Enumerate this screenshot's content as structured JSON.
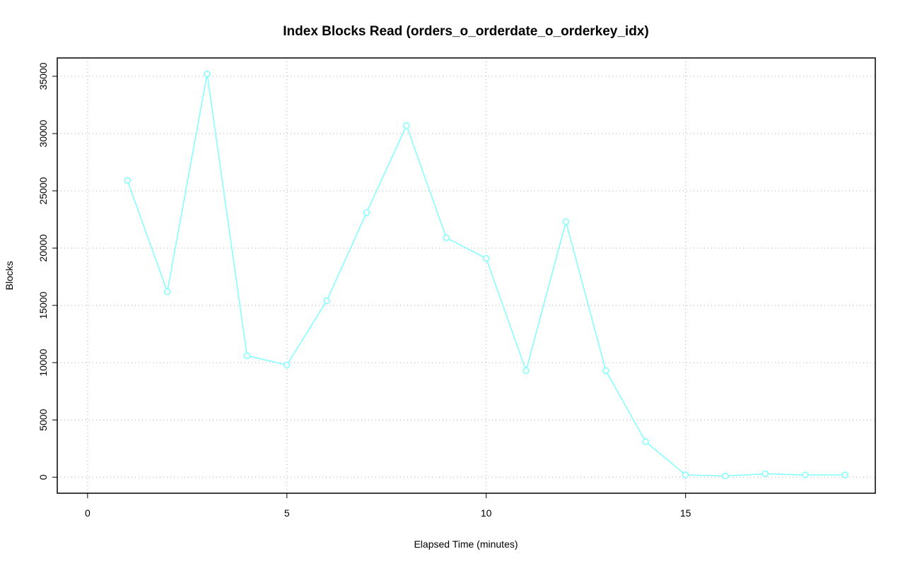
{
  "chart_data": {
    "type": "line",
    "title": "Index Blocks Read (orders_o_orderdate_o_orderkey_idx)",
    "x_label": "Elapsed Time (minutes)",
    "y_label": "Blocks",
    "x": [
      1,
      2,
      3,
      4,
      5,
      6,
      7,
      8,
      9,
      10,
      11,
      12,
      13,
      14,
      15,
      16,
      17,
      18,
      19
    ],
    "series": [
      {
        "name": "Blocks",
        "color": "#80ffff",
        "values": [
          25900,
          16200,
          35200,
          10600,
          9800,
          15400,
          23100,
          30700,
          20900,
          19100,
          9300,
          22300,
          9300,
          3100,
          200,
          100,
          300,
          200,
          200
        ]
      }
    ],
    "xlim": [
      -0.76,
      19.76
    ],
    "xticks": [
      0,
      5,
      10,
      15
    ],
    "ylim": [
      -1400,
      36600
    ],
    "yticks": [
      0,
      5000,
      10000,
      15000,
      20000,
      25000,
      30000,
      35000
    ],
    "grid": true
  }
}
